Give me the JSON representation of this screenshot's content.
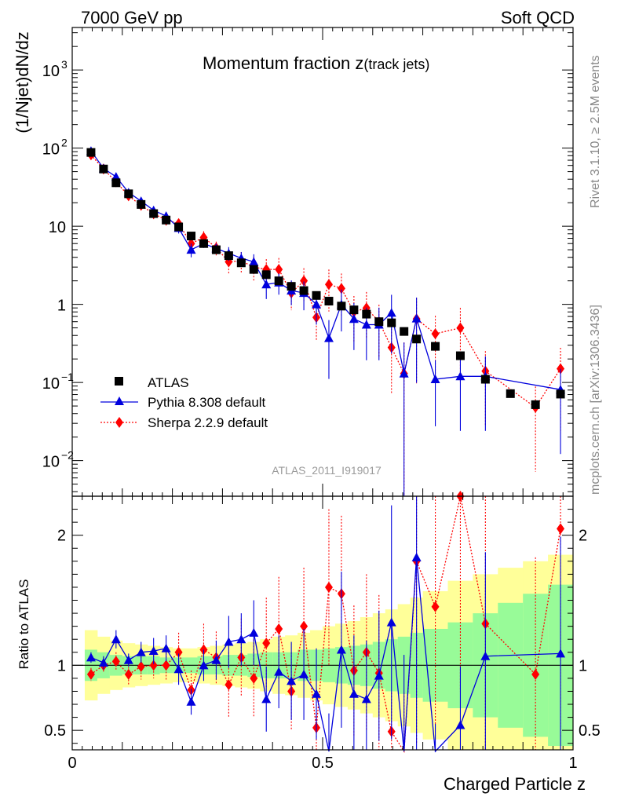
{
  "header": {
    "left": "7000 GeV pp",
    "right": "Soft QCD"
  },
  "side_labels": {
    "rivet": "Rivet 3.1.10, ≥ 2.5M events",
    "mcplots": "mcplots.cern.ch [arXiv:1306.3436]"
  },
  "analysis_tag": "ATLAS_2011_I919017",
  "colors": {
    "atlas": "#000000",
    "pythia": "#0000dd",
    "sherpa": "#ff0000",
    "band_inner": "#98fb98",
    "band_outer": "#ffff99"
  },
  "chart_data": [
    {
      "type": "scatter",
      "title_main": "Momentum fraction z",
      "title_sub": "(track jets)",
      "ylabel": "(1/Njet)dN/dz",
      "yscale": "log",
      "ylim": [
        0.0035,
        3500
      ],
      "xlim": [
        0,
        1
      ],
      "y_ticks": [
        {
          "v": 1000,
          "base": "10",
          "exp": "3"
        },
        {
          "v": 100,
          "base": "10",
          "exp": "2"
        },
        {
          "v": 10,
          "base": "10",
          "exp": ""
        },
        {
          "v": 1,
          "base": "1",
          "exp": ""
        },
        {
          "v": 0.1,
          "base": "10",
          "exp": "−1"
        },
        {
          "v": 0.01,
          "base": "10",
          "exp": "−2"
        }
      ],
      "legend": [
        {
          "label": "ATLAS",
          "series": "atlas"
        },
        {
          "label": "Pythia 8.308 default",
          "series": "pythia"
        },
        {
          "label": "Sherpa 2.2.9 default",
          "series": "sherpa"
        }
      ],
      "series": [
        {
          "name": "ATLAS",
          "key": "atlas",
          "x": [
            0.0375,
            0.0625,
            0.0875,
            0.1125,
            0.1375,
            0.1625,
            0.1875,
            0.2125,
            0.2375,
            0.2625,
            0.2875,
            0.3125,
            0.3375,
            0.3625,
            0.3875,
            0.4125,
            0.4375,
            0.4625,
            0.4875,
            0.5125,
            0.5375,
            0.5625,
            0.5875,
            0.6125,
            0.6375,
            0.6625,
            0.6875,
            0.725,
            0.775,
            0.825,
            0.875,
            0.925,
            0.975
          ],
          "y": [
            88,
            54,
            36,
            26,
            19,
            14.5,
            12,
            9.8,
            7.5,
            6.0,
            5.0,
            4.2,
            3.4,
            2.8,
            2.4,
            2.0,
            1.7,
            1.5,
            1.3,
            1.1,
            0.95,
            0.85,
            0.75,
            0.6,
            0.58,
            0.45,
            0.36,
            0.29,
            0.22,
            0.11,
            0.072,
            0.052,
            0.071
          ]
        },
        {
          "name": "Pythia 8.308 default",
          "key": "pythia",
          "x": [
            0.0375,
            0.0625,
            0.0875,
            0.1125,
            0.1375,
            0.1625,
            0.1875,
            0.2125,
            0.2375,
            0.2625,
            0.2875,
            0.3125,
            0.3375,
            0.3625,
            0.3875,
            0.4125,
            0.4375,
            0.4625,
            0.4875,
            0.5125,
            0.5375,
            0.5625,
            0.5875,
            0.6125,
            0.6375,
            0.6625,
            0.6875,
            0.725,
            0.775,
            0.825,
            0.975
          ],
          "y": [
            92,
            55,
            43,
            27,
            21,
            16,
            13.5,
            9.5,
            5.0,
            6.0,
            5.2,
            4.5,
            3.9,
            3.5,
            1.8,
            1.9,
            1.5,
            1.4,
            1.0,
            0.37,
            1.0,
            0.65,
            0.55,
            0.55,
            0.78,
            0.13,
            0.66,
            0.11,
            0.12,
            0.12,
            0.081
          ],
          "yerr": [
            0.08,
            0.08,
            0.1,
            0.08,
            0.1,
            0.12,
            0.12,
            0.15,
            0.2,
            0.12,
            0.15,
            0.2,
            0.2,
            0.25,
            0.35,
            0.3,
            0.35,
            0.4,
            0.45,
            0.7,
            0.55,
            0.6,
            0.65,
            0.65,
            0.7,
            1.5,
            0.85,
            0.75,
            0.8,
            0.8,
            0.85
          ]
        },
        {
          "name": "Sherpa 2.2.9 default",
          "key": "sherpa",
          "x": [
            0.0375,
            0.0625,
            0.0875,
            0.1125,
            0.1375,
            0.1625,
            0.1875,
            0.2125,
            0.2375,
            0.2625,
            0.2875,
            0.3125,
            0.3375,
            0.3625,
            0.3875,
            0.4125,
            0.4375,
            0.4625,
            0.4875,
            0.5125,
            0.5375,
            0.5625,
            0.5875,
            0.6125,
            0.6375,
            0.6625,
            0.6875,
            0.725,
            0.775,
            0.825,
            0.925,
            0.975
          ],
          "y": [
            82,
            54,
            37,
            24.5,
            18.5,
            14.5,
            12,
            10.8,
            6.0,
            7.2,
            5.3,
            3.5,
            3.6,
            3.0,
            2.8,
            2.8,
            1.4,
            2.0,
            0.68,
            1.8,
            1.6,
            0.8,
            0.9,
            0.6,
            0.28,
            0.13,
            0.65,
            0.42,
            0.5,
            0.14,
            0.048,
            0.15
          ],
          "yerr": [
            0.1,
            0.1,
            0.1,
            0.12,
            0.12,
            0.15,
            0.15,
            0.15,
            0.25,
            0.2,
            0.2,
            0.3,
            0.3,
            0.35,
            0.35,
            0.4,
            0.4,
            0.45,
            0.5,
            0.55,
            0.55,
            0.6,
            0.6,
            0.65,
            0.75,
            1.5,
            0.85,
            0.7,
            0.8,
            0.8,
            0.85,
            0.85
          ]
        }
      ]
    },
    {
      "type": "scatter",
      "ylabel": "Ratio to ATLAS",
      "xlabel": "Charged Particle z",
      "ylim": [
        0.35,
        2.3
      ],
      "xlim": [
        0,
        1
      ],
      "x_ticks": [
        {
          "v": 0,
          "label": "0"
        },
        {
          "v": 0.5,
          "label": "0.5"
        },
        {
          "v": 1,
          "label": "1"
        }
      ],
      "y_ticks": [
        {
          "v": 0.5,
          "label": "0.5"
        },
        {
          "v": 1,
          "label": "1"
        },
        {
          "v": 2,
          "label": "2"
        }
      ],
      "band_edges": [
        0.025,
        0.05,
        0.075,
        0.1,
        0.125,
        0.15,
        0.175,
        0.2,
        0.225,
        0.25,
        0.275,
        0.3,
        0.325,
        0.35,
        0.375,
        0.4,
        0.425,
        0.45,
        0.475,
        0.5,
        0.525,
        0.55,
        0.575,
        0.6,
        0.625,
        0.65,
        0.675,
        0.7,
        0.75,
        0.8,
        0.85,
        0.9,
        0.95,
        1.0
      ],
      "band_inner": [
        0.12,
        0.1,
        0.08,
        0.07,
        0.07,
        0.07,
        0.06,
        0.06,
        0.06,
        0.07,
        0.07,
        0.08,
        0.08,
        0.09,
        0.1,
        0.1,
        0.1,
        0.12,
        0.12,
        0.13,
        0.14,
        0.15,
        0.16,
        0.18,
        0.2,
        0.22,
        0.25,
        0.28,
        0.33,
        0.4,
        0.48,
        0.55,
        0.62
      ],
      "band_outer": [
        0.27,
        0.22,
        0.19,
        0.17,
        0.16,
        0.15,
        0.14,
        0.13,
        0.13,
        0.14,
        0.15,
        0.16,
        0.17,
        0.18,
        0.2,
        0.22,
        0.23,
        0.25,
        0.27,
        0.3,
        0.32,
        0.34,
        0.37,
        0.4,
        0.43,
        0.47,
        0.52,
        0.57,
        0.65,
        0.7,
        0.75,
        0.8,
        0.85
      ],
      "series": [
        {
          "key": "pythia",
          "x": [
            0.0375,
            0.0625,
            0.0875,
            0.1125,
            0.1375,
            0.1625,
            0.1875,
            0.2125,
            0.2375,
            0.2625,
            0.2875,
            0.3125,
            0.3375,
            0.3625,
            0.3875,
            0.4125,
            0.4375,
            0.4625,
            0.4875,
            0.5125,
            0.5375,
            0.5625,
            0.5875,
            0.6125,
            0.6375,
            0.6625,
            0.6875,
            0.725,
            0.775,
            0.825,
            0.975
          ],
          "y": [
            1.06,
            1.02,
            1.2,
            1.04,
            1.1,
            1.11,
            1.13,
            0.97,
            0.72,
            1.0,
            1.04,
            1.18,
            1.2,
            1.25,
            0.74,
            0.95,
            0.88,
            0.93,
            0.78,
            0.33,
            1.12,
            0.78,
            0.74,
            0.92,
            1.33,
            0.28,
            1.83,
            0.3,
            0.54,
            1.07,
            1.09
          ],
          "yerr": [
            0.04,
            0.05,
            0.07,
            0.05,
            0.08,
            0.1,
            0.1,
            0.12,
            0.1,
            0.12,
            0.15,
            0.2,
            0.2,
            0.25,
            0.25,
            0.28,
            0.3,
            0.35,
            0.35,
            0.3,
            0.6,
            0.45,
            0.45,
            0.5,
            0.9,
            0.8,
            1.5,
            0.25,
            0.45,
            0.8,
            0.9
          ]
        },
        {
          "key": "sherpa",
          "x": [
            0.0375,
            0.0625,
            0.0875,
            0.1125,
            0.1375,
            0.1625,
            0.1875,
            0.2125,
            0.2375,
            0.2625,
            0.2875,
            0.3125,
            0.3375,
            0.3625,
            0.3875,
            0.4125,
            0.4375,
            0.4625,
            0.4875,
            0.5125,
            0.5375,
            0.5625,
            0.5875,
            0.6125,
            0.6375,
            0.6625,
            0.6875,
            0.725,
            0.775,
            0.825,
            0.925,
            0.975
          ],
          "y": [
            0.93,
            1.0,
            1.03,
            0.93,
            0.99,
            1.0,
            1.0,
            1.1,
            0.81,
            1.12,
            1.06,
            0.85,
            1.06,
            0.9,
            1.17,
            1.28,
            0.8,
            1.3,
            0.52,
            1.6,
            1.55,
            0.96,
            1.1,
            0.94,
            0.49,
            0.29,
            1.8,
            1.45,
            2.3,
            1.32,
            0.93,
            2.05
          ],
          "yerr": [
            0.05,
            0.06,
            0.07,
            0.08,
            0.1,
            0.1,
            0.12,
            0.15,
            0.15,
            0.2,
            0.2,
            0.25,
            0.3,
            0.3,
            0.35,
            0.4,
            0.3,
            0.45,
            0.3,
            0.6,
            0.6,
            0.5,
            0.6,
            0.6,
            0.3,
            0.5,
            1.4,
            0.9,
            1.5,
            1.0,
            0.9,
            1.6
          ]
        }
      ]
    }
  ]
}
